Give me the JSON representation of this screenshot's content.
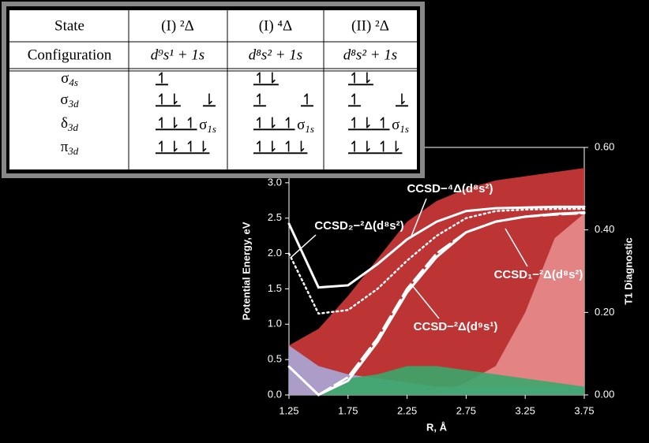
{
  "chart_data": {
    "type": "line",
    "x_label": "R, Å",
    "y_label": "Potential Energy, eV",
    "y2_label": "T1 Diagnostic",
    "x": [
      1.25,
      1.5,
      1.75,
      2.0,
      2.25,
      2.5,
      2.75,
      3.0,
      3.25,
      3.5,
      3.75
    ],
    "xlim": [
      1.25,
      3.75
    ],
    "xticks": [
      1.25,
      1.75,
      2.25,
      2.75,
      3.25,
      3.75
    ],
    "ylim": [
      0,
      3.5
    ],
    "yticks": [
      {
        "value": 0,
        "label": "0.0"
      },
      0.5,
      {
        "value": 1,
        "label": "1.0"
      },
      1.5,
      {
        "value": 2,
        "label": "2.0"
      },
      2.5,
      {
        "value": 3,
        "label": "3.0"
      }
    ],
    "y2lim": [
      0,
      0.6
    ],
    "y2ticks": [
      {
        "value": 0,
        "label": "0.00"
      },
      {
        "value": 0.2,
        "label": "0.20"
      },
      {
        "value": 0.4,
        "label": "0.40"
      },
      {
        "value": 0.6,
        "label": "0.60"
      }
    ],
    "series": [
      {
        "name": "CCSD−⁴Δ(d⁸s²)",
        "color": "#ffffff",
        "style": "solid",
        "values": [
          2.42,
          1.52,
          1.55,
          1.85,
          2.2,
          2.45,
          2.6,
          2.64,
          2.65,
          2.66,
          2.66
        ]
      },
      {
        "name": "CCSD₂−²Δ(d⁸s²)",
        "color": "#ffffff",
        "style": "dotted",
        "values": [
          2.0,
          1.15,
          1.2,
          1.5,
          1.9,
          2.25,
          2.5,
          2.6,
          2.62,
          2.63,
          2.63
        ]
      },
      {
        "name": "CCSD₁−²Δ(d⁸s²)",
        "color": "#ffffff",
        "style": "dashed",
        "values": [
          null,
          0.0,
          0.25,
          0.8,
          1.5,
          2.0,
          2.3,
          2.45,
          2.52,
          2.55,
          2.57
        ]
      },
      {
        "name": "CCSD−²Δ(d⁹s¹)",
        "color": "#ffffff",
        "style": "solid",
        "values": [
          0.4,
          0.0,
          0.2,
          0.75,
          1.45,
          1.95,
          2.3,
          2.45,
          2.52,
          2.56,
          2.58
        ]
      },
      {
        "kind": "area",
        "axis": "y2",
        "color": "#d03a3a",
        "values": [
          0.12,
          0.16,
          0.24,
          0.33,
          0.42,
          0.47,
          0.5,
          0.52,
          0.53,
          0.54,
          0.55
        ]
      },
      {
        "kind": "area",
        "axis": "y2",
        "color": "#e88c8c",
        "values": [
          0,
          0,
          0,
          0,
          0,
          0,
          0.03,
          0.07,
          0.2,
          0.38,
          0.44
        ]
      },
      {
        "kind": "area",
        "axis": "y2",
        "color": "#a9a9d8",
        "values": [
          0.12,
          0.07,
          0.05,
          0.04,
          0.03,
          0.02,
          0.02,
          0.02,
          0.02,
          0.02,
          0.02
        ]
      },
      {
        "kind": "area",
        "axis": "y2",
        "color": "#3aa76a",
        "values": [
          0,
          0,
          0.04,
          0.05,
          0.07,
          0.07,
          0.06,
          0.05,
          0.04,
          0.03,
          0.02
        ]
      }
    ]
  },
  "table": {
    "row_headers": [
      "State",
      "Configuration"
    ],
    "orbitals": [
      {
        "symbol": "σ",
        "sub": "4s"
      },
      {
        "symbol": "σ",
        "sub": "3d"
      },
      {
        "symbol": "δ",
        "sub": "3d"
      },
      {
        "symbol": "π",
        "sub": "3d"
      }
    ],
    "sigma1s_label": {
      "symbol": "σ",
      "sub": "1s"
    },
    "columns": [
      {
        "state": "(I) ²Δ",
        "config": "d⁹s¹ + 1s",
        "occupancy": [
          "↿",
          "↿⇂",
          "↿⇂ ↿",
          "↿⇂ ↿⇂"
        ],
        "sigma1s": "⇂"
      },
      {
        "state": "(I) ⁴Δ",
        "config": "d⁸s² + 1s",
        "occupancy": [
          "↿⇂",
          "↿",
          "↿⇂ ↿",
          "↿⇂ ↿⇂"
        ],
        "sigma1s": "↿"
      },
      {
        "state": "(II) ²Δ",
        "config": "d⁸s² + 1s",
        "occupancy": [
          "↿⇂",
          "↿",
          "↿⇂ ↿",
          "↿⇂ ↿⇂"
        ],
        "sigma1s": "⇂"
      }
    ]
  }
}
